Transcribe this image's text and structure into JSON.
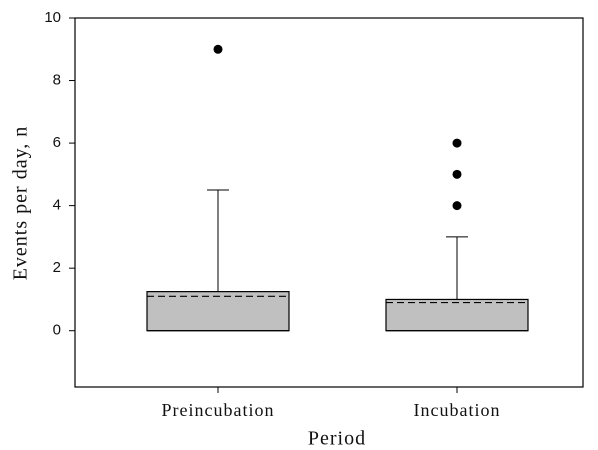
{
  "chart_data": {
    "type": "box",
    "y_label": "Events per day, n",
    "x_label": "Period",
    "categories": [
      "Preincubation",
      "Incubation"
    ],
    "boxes": [
      {
        "min": 0,
        "q1": 0,
        "median": 0,
        "q3": 1.25,
        "max": 4.5,
        "mean": 1.1,
        "outliers": [
          9
        ]
      },
      {
        "min": 0,
        "q1": 0,
        "median": 0,
        "q3": 1.0,
        "max": 3.0,
        "mean": 0.9,
        "outliers": [
          4,
          5,
          6
        ]
      }
    ],
    "color": "#c0c0c0",
    "ylim": [
      -1.8,
      10
    ],
    "yticks": [
      0,
      2,
      4,
      6,
      8,
      10
    ]
  }
}
